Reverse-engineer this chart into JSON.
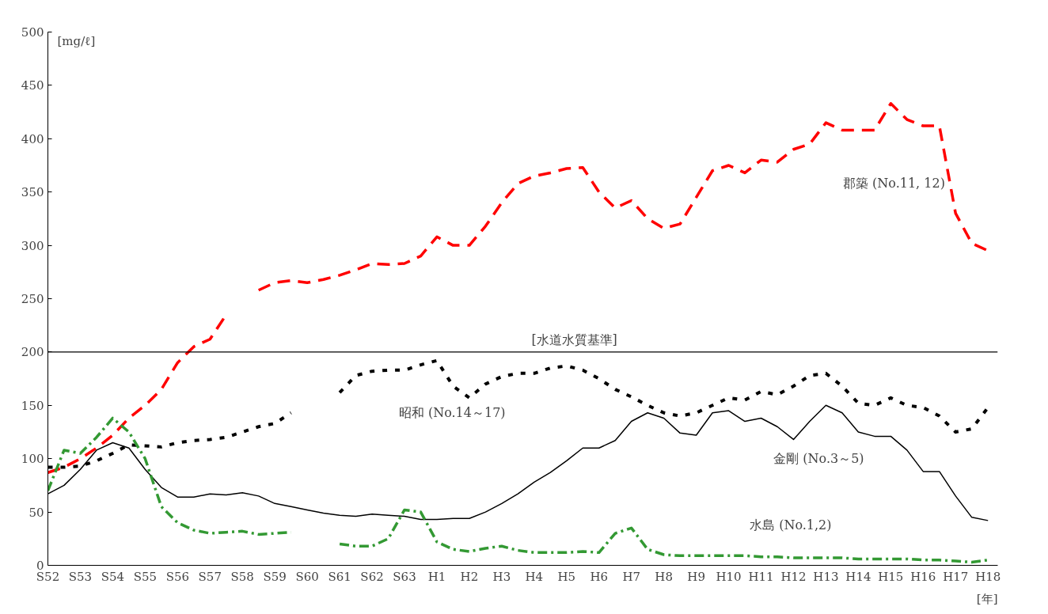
{
  "chart_data": {
    "type": "line",
    "ylabel": "[mg/ℓ]",
    "xlabel": "[年]",
    "ylim": [
      0,
      500
    ],
    "yticks": [
      0,
      50,
      100,
      150,
      200,
      250,
      300,
      350,
      400,
      450,
      500
    ],
    "categories": [
      "S52",
      null,
      "S53",
      null,
      "S54",
      null,
      "S55",
      null,
      "S56",
      null,
      "S57",
      null,
      "S58",
      null,
      "S59",
      null,
      "S60",
      null,
      "S61",
      null,
      "S62",
      null,
      "S63",
      null,
      "H1",
      null,
      "H2",
      null,
      "H3",
      null,
      "H4",
      null,
      "H5",
      null,
      "H6",
      null,
      "H7",
      null,
      "H8",
      null,
      "H9",
      null,
      "H10",
      null,
      "H11",
      null,
      "H12",
      null,
      "H13",
      null,
      "H14",
      null,
      "H15",
      null,
      "H16",
      null,
      "H17",
      null,
      "H18"
    ],
    "grid": false,
    "ref_lines": [
      {
        "axis": "y",
        "value": 200,
        "label": "[水道水質基準]",
        "color": "#000000"
      }
    ],
    "series": [
      {
        "name": "郡築 (No.11, 12)",
        "color": "#ff0000",
        "line_style": "dashed",
        "values": [
          87,
          92,
          100,
          110,
          122,
          138,
          150,
          165,
          190,
          205,
          212,
          235,
          null,
          258,
          265,
          267,
          265,
          268,
          272,
          277,
          283,
          282,
          283,
          290,
          308,
          300,
          300,
          318,
          340,
          358,
          365,
          368,
          372,
          373,
          350,
          335,
          342,
          325,
          316,
          320,
          345,
          370,
          375,
          368,
          380,
          378,
          390,
          395,
          415,
          408,
          408,
          408,
          433,
          418,
          412,
          412,
          330,
          302,
          295
        ]
      },
      {
        "name": "昭和 (No.14～17)",
        "color": "#000000",
        "line_style": "dotted",
        "values": [
          92,
          92,
          93,
          98,
          105,
          113,
          112,
          111,
          115,
          117,
          118,
          120,
          125,
          130,
          133,
          143,
          null,
          null,
          162,
          178,
          182,
          183,
          183,
          188,
          192,
          168,
          157,
          170,
          177,
          180,
          180,
          185,
          187,
          183,
          175,
          165,
          158,
          150,
          143,
          140,
          143,
          150,
          157,
          155,
          163,
          160,
          168,
          178,
          180,
          168,
          152,
          150,
          157,
          150,
          148,
          140,
          125,
          128,
          148
        ]
      },
      {
        "name": "金剛 (No.3～5)",
        "color": "#000000",
        "line_style": "solid",
        "values": [
          67,
          75,
          90,
          108,
          115,
          110,
          90,
          73,
          64,
          64,
          67,
          66,
          68,
          65,
          58,
          55,
          52,
          49,
          47,
          46,
          48,
          47,
          46,
          43,
          43,
          44,
          44,
          50,
          58,
          67,
          78,
          87,
          98,
          110,
          110,
          117,
          135,
          143,
          138,
          124,
          122,
          143,
          145,
          135,
          138,
          130,
          118,
          135,
          150,
          143,
          125,
          121,
          121,
          108,
          88,
          88,
          65,
          45,
          42
        ]
      },
      {
        "name": "水島 (No.1,2)",
        "color": "#339933",
        "line_style": "dashdot",
        "values": [
          70,
          108,
          105,
          120,
          138,
          125,
          100,
          55,
          40,
          33,
          30,
          31,
          32,
          29,
          30,
          31,
          null,
          null,
          20,
          18,
          18,
          25,
          52,
          50,
          22,
          15,
          13,
          16,
          18,
          14,
          12,
          12,
          12,
          13,
          12,
          30,
          35,
          15,
          10,
          9,
          9,
          9,
          9,
          9,
          8,
          8,
          7,
          7,
          7,
          7,
          6,
          6,
          6,
          6,
          5,
          5,
          4,
          3,
          5
        ]
      }
    ]
  }
}
